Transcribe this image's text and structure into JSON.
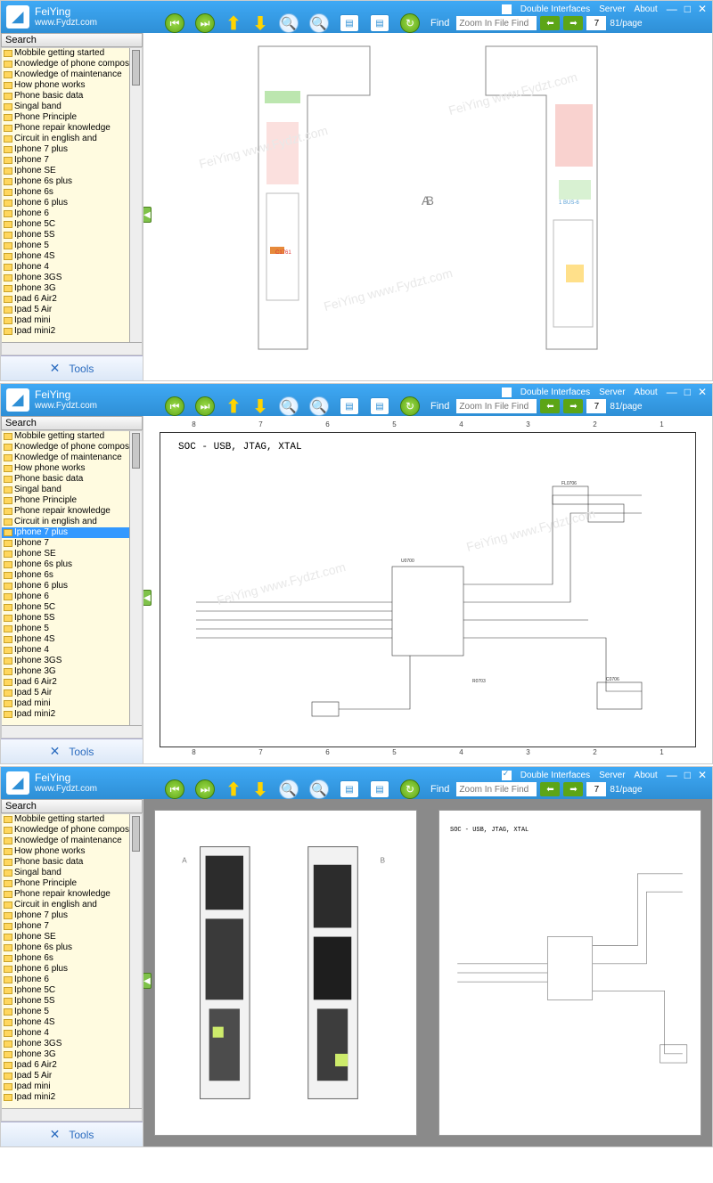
{
  "app": {
    "title": "FeiYing",
    "url": "www.Fydzt.com",
    "menu_double": "Double Interfaces",
    "menu_server": "Server",
    "menu_about": "About",
    "find_label": "Find",
    "find_placeholder": "Zoom In File Find",
    "page_current": "7",
    "page_total": "81/page"
  },
  "sidebar": {
    "search_label": "Search",
    "tools_label": "Tools",
    "items": [
      "Mobbile getting started",
      "Knowledge of phone compos",
      "Knowledge of maintenance",
      "How phone works",
      "Phone basic data",
      "Singal band",
      "Phone Principle",
      "Phone repair knowledge",
      "Circuit in english and",
      "Iphone 7 plus",
      "Iphone 7",
      "Iphone SE",
      "Iphone 6s plus",
      "Iphone 6s",
      "Iphone 6 plus",
      "Iphone 6",
      "Iphone 5C",
      "Iphone 5S",
      "Iphone 5",
      "Iphone 4S",
      "Iphone 4",
      "Iphone 3GS",
      "Iphone 3G",
      "Ipad 6 Air2",
      "Ipad 5 Air",
      "Ipad mini",
      "Ipad mini2"
    ],
    "selected_index_win2": 9
  },
  "pcb": {
    "label_a": "A",
    "label_b": "B",
    "watermark": "FeiYing  www.Fydzt.com"
  },
  "schematic": {
    "title": "SOC - USB, JTAG, XTAL",
    "ruler": [
      "8",
      "7",
      "6",
      "5",
      "4",
      "3",
      "2",
      "1"
    ]
  },
  "colors": {
    "titlebar": "#3fa9f5",
    "sidebar_bg": "#fffbe0",
    "green_btn": "#5ca516",
    "yellow_arrow": "#ffd400",
    "selection": "#3399ff"
  },
  "windows": [
    {
      "double_checked": false,
      "content": "pcb"
    },
    {
      "double_checked": false,
      "content": "schematic"
    },
    {
      "double_checked": true,
      "content": "split"
    }
  ]
}
